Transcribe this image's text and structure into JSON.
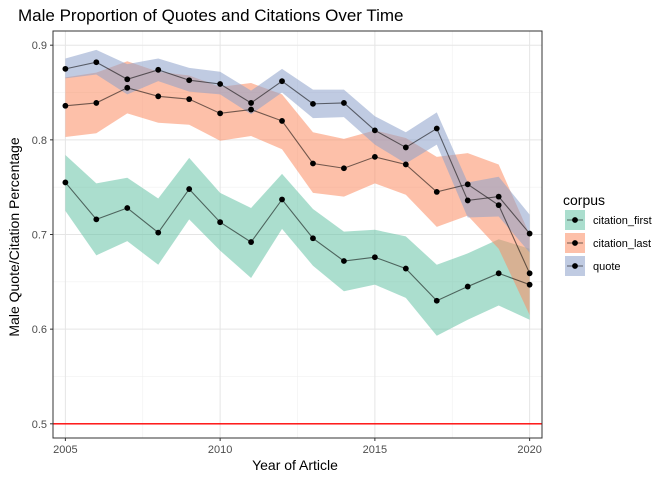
{
  "chart_data": {
    "type": "line",
    "title": "Male Proportion of Quotes and Citations Over Time",
    "xlabel": "Year of Article",
    "ylabel": "Male Quote/Citation Percentage",
    "xlim": [
      2004.6,
      2020.4
    ],
    "ylim": [
      0.485,
      0.915
    ],
    "x_ticks": [
      2005,
      2010,
      2015,
      2020
    ],
    "x_tick_labels": [
      "2005",
      "2010",
      "2015",
      "2020"
    ],
    "y_ticks": [
      0.5,
      0.6,
      0.7,
      0.8,
      0.9
    ],
    "y_tick_labels": [
      "0.5",
      "0.6",
      "0.7",
      "0.8",
      "0.9"
    ],
    "grid": true,
    "legend": {
      "title": "corpus",
      "position": "right"
    },
    "x": [
      2005,
      2006,
      2007,
      2008,
      2009,
      2010,
      2011,
      2012,
      2013,
      2014,
      2015,
      2016,
      2017,
      2018,
      2019,
      2020
    ],
    "series": [
      {
        "name": "citation_first",
        "color": "#66c2a5",
        "values": [
          0.755,
          0.716,
          0.728,
          0.702,
          0.748,
          0.713,
          0.692,
          0.737,
          0.696,
          0.672,
          0.676,
          0.664,
          0.63,
          0.645,
          0.659,
          0.647
        ],
        "lower": [
          0.725,
          0.678,
          0.693,
          0.668,
          0.716,
          0.683,
          0.654,
          0.706,
          0.667,
          0.64,
          0.647,
          0.633,
          0.593,
          0.61,
          0.625,
          0.61
        ],
        "upper": [
          0.784,
          0.754,
          0.76,
          0.738,
          0.781,
          0.744,
          0.728,
          0.764,
          0.727,
          0.703,
          0.705,
          0.698,
          0.668,
          0.68,
          0.695,
          0.685
        ]
      },
      {
        "name": "citation_last",
        "color": "#fc8d62",
        "values": [
          0.836,
          0.839,
          0.855,
          0.846,
          0.843,
          0.828,
          0.832,
          0.82,
          0.775,
          0.77,
          0.782,
          0.774,
          0.745,
          0.753,
          0.731,
          0.659
        ],
        "lower": [
          0.803,
          0.807,
          0.828,
          0.818,
          0.816,
          0.799,
          0.804,
          0.79,
          0.744,
          0.74,
          0.754,
          0.742,
          0.708,
          0.72,
          0.685,
          0.615
        ],
        "upper": [
          0.866,
          0.871,
          0.883,
          0.872,
          0.868,
          0.856,
          0.86,
          0.848,
          0.808,
          0.801,
          0.81,
          0.802,
          0.782,
          0.786,
          0.774,
          0.7
        ]
      },
      {
        "name": "quote",
        "color": "#8da0cb",
        "values": [
          0.875,
          0.882,
          0.864,
          0.874,
          0.863,
          0.859,
          0.839,
          0.862,
          0.838,
          0.839,
          0.81,
          0.792,
          0.812,
          0.736,
          0.74,
          0.701
        ],
        "lower": [
          0.865,
          0.869,
          0.848,
          0.862,
          0.851,
          0.848,
          0.827,
          0.85,
          0.823,
          0.824,
          0.795,
          0.775,
          0.795,
          0.718,
          0.719,
          0.681
        ],
        "upper": [
          0.886,
          0.895,
          0.88,
          0.886,
          0.876,
          0.872,
          0.852,
          0.875,
          0.853,
          0.853,
          0.825,
          0.808,
          0.829,
          0.755,
          0.761,
          0.721
        ]
      }
    ],
    "reference_line": {
      "y": 0.5,
      "color": "#ff0000"
    }
  }
}
